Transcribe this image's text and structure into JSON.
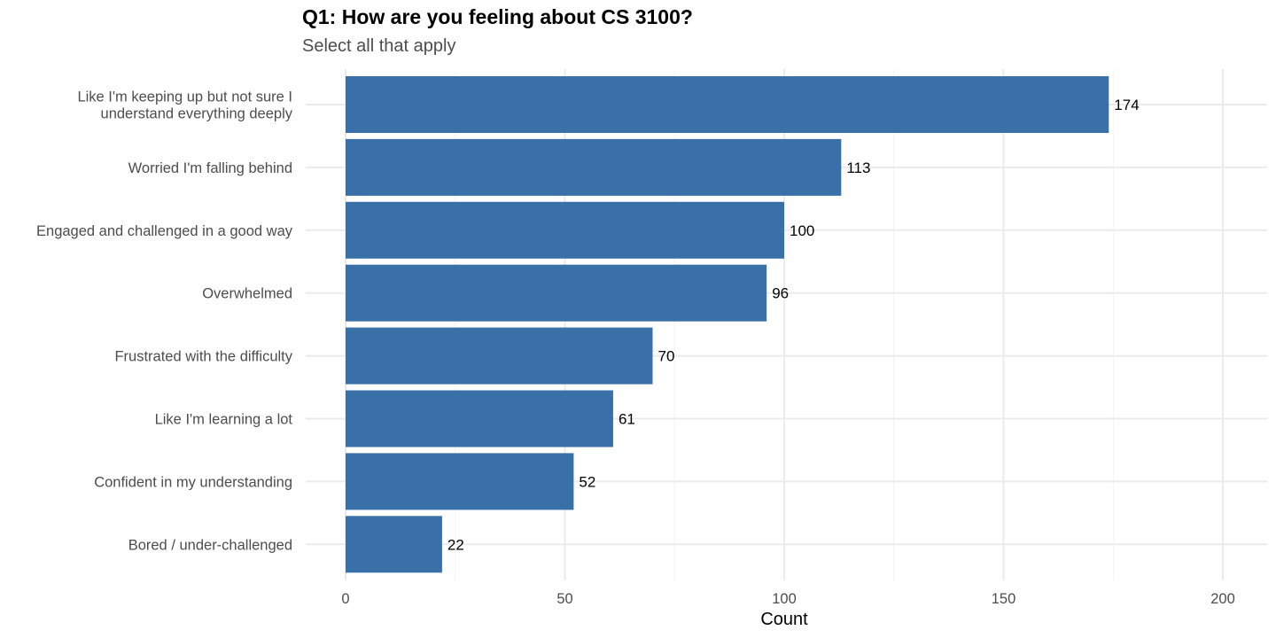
{
  "chart_data": {
    "type": "bar",
    "orientation": "horizontal",
    "title": "Q1: How are you feeling about CS 3100?",
    "subtitle": "Select all that apply",
    "xlabel": "Count",
    "ylabel": "",
    "xlim": [
      0,
      200
    ],
    "x_ticks": [
      0,
      50,
      100,
      150,
      200
    ],
    "grid": true,
    "legend": "none",
    "bar_color": "#3a70a8",
    "categories": [
      [
        "Like I'm keeping up but not sure I",
        "understand everything deeply"
      ],
      [
        "Worried I'm falling behind"
      ],
      [
        "Engaged and challenged in a good way"
      ],
      [
        "Overwhelmed"
      ],
      [
        "Frustrated with the difficulty"
      ],
      [
        "Like I'm learning a lot"
      ],
      [
        "Confident in my understanding"
      ],
      [
        "Bored / under-challenged"
      ]
    ],
    "values": [
      174,
      113,
      100,
      96,
      70,
      61,
      52,
      22
    ]
  }
}
